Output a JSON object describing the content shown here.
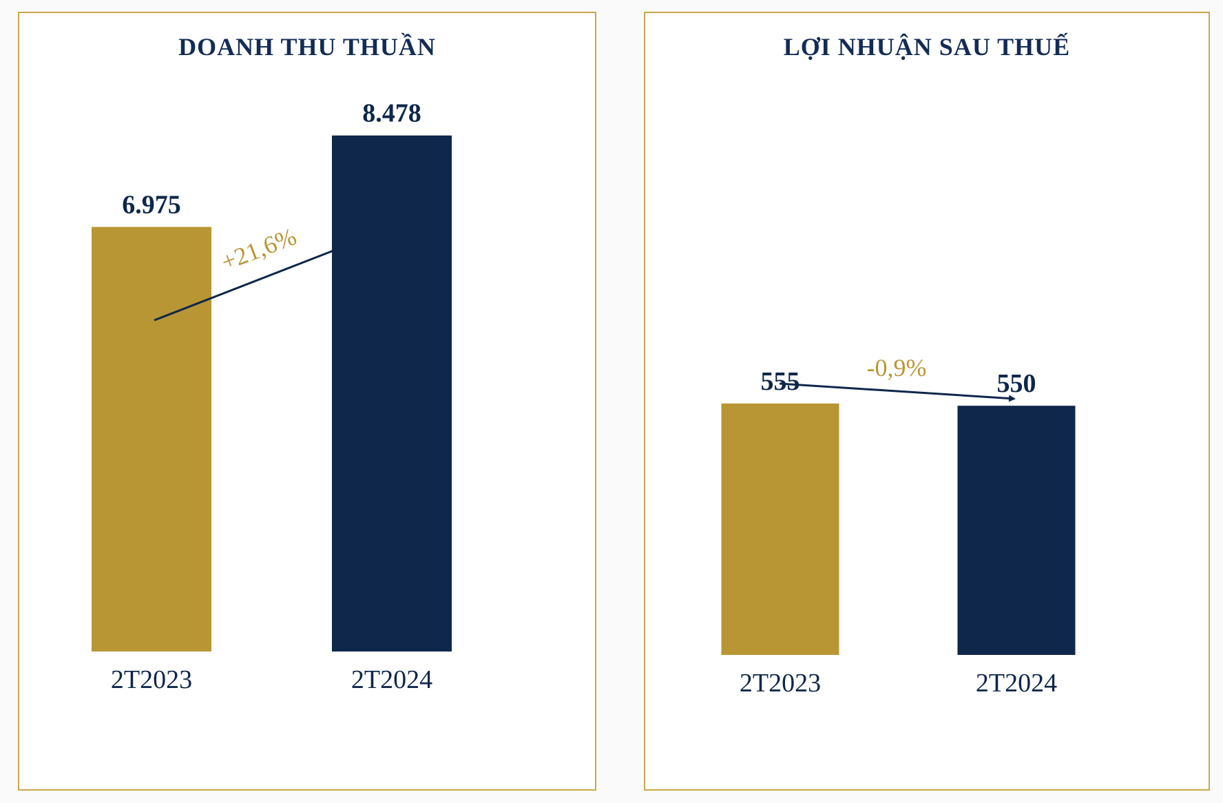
{
  "colors": {
    "gold": "#b99634",
    "navy": "#0e274b",
    "border": "#c9a84a",
    "title": "#132c55",
    "change": "#b99634"
  },
  "chart_data": [
    {
      "type": "bar",
      "title": "DOANH THU THUẦN",
      "categories": [
        "2T2023",
        "2T2024"
      ],
      "values": [
        6975,
        8478
      ],
      "value_labels": [
        "6.975",
        "8.478"
      ],
      "bar_colors": [
        "#b99634",
        "#0e274b"
      ],
      "ylim": [
        0,
        10500
      ],
      "change_label": "+21,6%",
      "change_direction": "up",
      "grid": false,
      "legend": "none"
    },
    {
      "type": "bar",
      "title": "LỢI NHUẬN SAU THUẾ",
      "categories": [
        "2T2023",
        "2T2024"
      ],
      "values": [
        555,
        550
      ],
      "value_labels": [
        "555",
        "550"
      ],
      "bar_colors": [
        "#b99634",
        "#0e274b"
      ],
      "ylim": [
        0,
        1520
      ],
      "change_label": "-0,9%",
      "change_direction": "down",
      "grid": false,
      "legend": "none"
    }
  ]
}
